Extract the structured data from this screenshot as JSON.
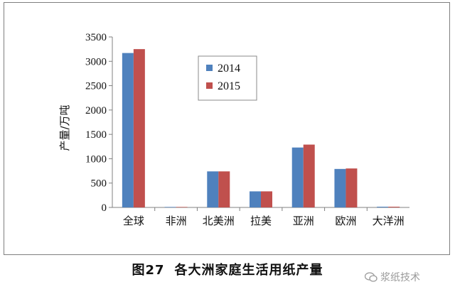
{
  "chart_data": {
    "type": "bar",
    "categories": [
      "全球",
      "非洲",
      "北美洲",
      "拉美",
      "亚洲",
      "欧洲",
      "大洋洲"
    ],
    "series": [
      {
        "name": "2014",
        "color": "#4f81bd",
        "values": [
          3170,
          10,
          740,
          330,
          1230,
          790,
          15
        ]
      },
      {
        "name": "2015",
        "color": "#c0504d",
        "values": [
          3250,
          10,
          740,
          330,
          1290,
          800,
          15
        ]
      }
    ],
    "title": "",
    "xlabel": "",
    "ylabel": "产量/万吨",
    "ylim": [
      0,
      3500
    ],
    "yticks": [
      0,
      500,
      1000,
      1500,
      2000,
      2500,
      3000,
      3500
    ],
    "grid": false,
    "legend": "top-center"
  },
  "caption": {
    "figure_number": "图27",
    "text": "各大洲家庭生活用纸产量"
  },
  "watermark": {
    "text": "浆纸技术",
    "icon": "wechat-icon"
  }
}
